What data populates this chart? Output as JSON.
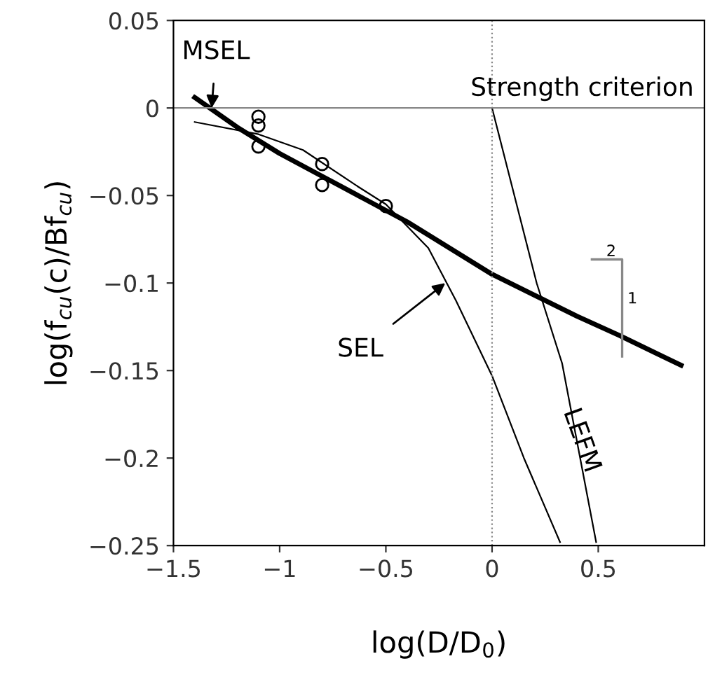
{
  "chart_data": {
    "type": "line",
    "xlabel": "log(D/D$_{0}$)",
    "ylabel": "log(f$_{cu}$(c)/Bf$_{cu}$)",
    "xlim": [
      -1.5,
      1.0
    ],
    "ylim": [
      -0.25,
      0.05
    ],
    "xticks": [
      -1.5,
      -1,
      -0.5,
      0,
      0.5
    ],
    "yticks": [
      0.05,
      0,
      -0.05,
      -0.1,
      -0.15,
      -0.2,
      -0.25
    ],
    "grid": false,
    "marker": "none",
    "line_style": "solid",
    "series": [
      {
        "color": "#000000",
        "x": [
          -1.4,
          -1.2,
          -1.0,
          -0.8,
          -0.6,
          -0.4,
          -0.2,
          0,
          0.2,
          0.4,
          0.6,
          0.89
        ],
        "values": [
          0.006,
          -0.011,
          -0.026,
          -0.039,
          -0.052,
          -0.065,
          -0.08,
          -0.095,
          -0.107,
          -0.119,
          -0.13,
          -0.147
        ]
      },
      {
        "color": "#000000",
        "x": [
          -1.4,
          -1.1,
          -0.89,
          -0.63,
          -0.5,
          -0.3,
          -0.17,
          0,
          0.15,
          0.32
        ],
        "values": [
          -0.008,
          -0.015,
          -0.024,
          -0.045,
          -0.055,
          -0.08,
          -0.11,
          -0.153,
          -0.2,
          -0.248
        ]
      },
      {
        "color": "#000000",
        "x": [
          0,
          0.21,
          0.33,
          0.49
        ],
        "values": [
          0,
          -0.1,
          -0.146,
          -0.248
        ]
      },
      {
        "type": "scatter",
        "color": "#000000",
        "marker": "circle",
        "x": [
          -1.1,
          -1.1,
          -1.1,
          -0.8,
          -0.8,
          -0.5
        ],
        "values": [
          -0.005,
          -0.01,
          -0.022,
          -0.032,
          -0.044,
          -0.056
        ]
      }
    ],
    "ref_lines": [
      {
        "axis": "y",
        "value": 0,
        "label": "Strength criterion",
        "color": "#888888",
        "line_style": "solid"
      },
      {
        "axis": "x",
        "value": 0,
        "color": "#888888",
        "line_style": "dotted"
      }
    ],
    "annotations": [
      {
        "text": "MSEL",
        "x": -1.32,
        "y": 0.0
      },
      {
        "text": "SEL",
        "x": -0.22,
        "y": -0.1
      },
      {
        "text": "LEFM",
        "x": 0.42,
        "y": -0.19
      },
      "2",
      "1"
    ]
  }
}
